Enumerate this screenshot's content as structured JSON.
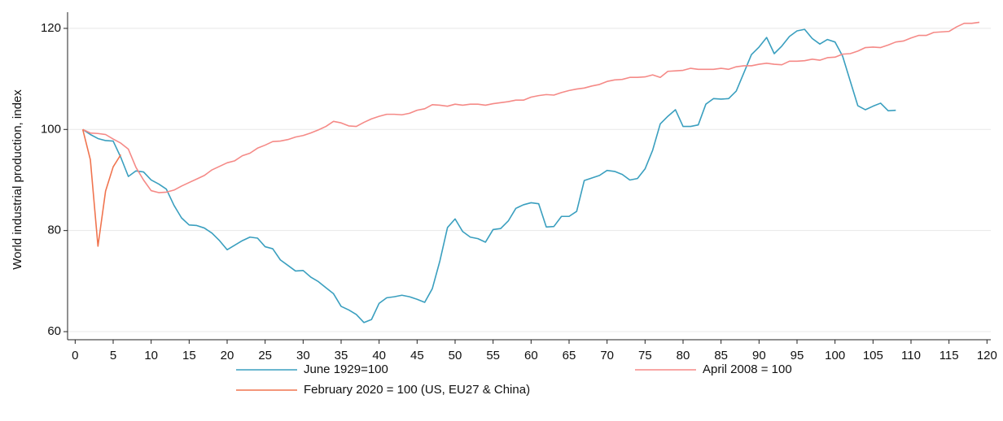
{
  "chart_data": {
    "type": "line",
    "y_label": "World industrial production, index",
    "xlim": [
      -1,
      120.5
    ],
    "ylim": [
      58.4,
      123.2
    ],
    "xticks": [
      0,
      5,
      10,
      15,
      20,
      25,
      30,
      35,
      40,
      45,
      50,
      55,
      60,
      65,
      70,
      75,
      80,
      85,
      90,
      95,
      100,
      105,
      110,
      115,
      120
    ],
    "yticks": [
      60,
      80,
      100,
      120
    ],
    "grid": true,
    "series": [
      {
        "name": "June 1929=100",
        "color": "#3a9fbf",
        "x": [
          1,
          2,
          3,
          4,
          5,
          6,
          7,
          8,
          9,
          10,
          11,
          12,
          13,
          14,
          15,
          16,
          17,
          18,
          19,
          20,
          21,
          22,
          23,
          24,
          25,
          26,
          27,
          28,
          29,
          30,
          31,
          32,
          33,
          34,
          35,
          36,
          37,
          38,
          39,
          40,
          41,
          42,
          43,
          44,
          45,
          46,
          47,
          48,
          49,
          50,
          51,
          52,
          53,
          54,
          55,
          56,
          57,
          58,
          59,
          60,
          61,
          62,
          63,
          64,
          65,
          66,
          67,
          68,
          69,
          70,
          71,
          72,
          73,
          74,
          75,
          76,
          77,
          78,
          79,
          80,
          81,
          82,
          83,
          84,
          85,
          86,
          87,
          88,
          89,
          90,
          91,
          92,
          93,
          94,
          95,
          96,
          97,
          98,
          99,
          100,
          101,
          102,
          103,
          104,
          105,
          106,
          107,
          108
        ],
        "values": [
          100,
          99,
          98.2,
          97.8,
          97.7,
          94.5,
          90.7,
          91.8,
          91.6,
          90,
          89.2,
          88.2,
          85,
          82.5,
          81.1,
          81,
          80.5,
          79.5,
          78,
          76.2,
          77.1,
          78,
          78.7,
          78.5,
          76.8,
          76.4,
          74.2,
          73.1,
          72,
          72.1,
          70.8,
          69.9,
          68.7,
          67.5,
          65,
          64.3,
          63.4,
          61.8,
          62.4,
          65.6,
          66.7,
          66.9,
          67.2,
          66.9,
          66.4,
          65.8,
          68.5,
          74,
          80.6,
          82.3,
          79.8,
          78.7,
          78.4,
          77.7,
          80.2,
          80.4,
          81.9,
          84.4,
          85.1,
          85.5,
          85.3,
          80.7,
          80.8,
          82.8,
          82.8,
          83.8,
          89.9,
          90.4,
          90.9,
          91.9,
          91.7,
          91.1,
          90,
          90.3,
          92.2,
          95.9,
          101.1,
          102.6,
          103.9,
          100.6,
          100.6,
          100.9,
          105,
          106.1,
          106,
          106.1,
          107.6,
          111.2,
          114.8,
          116.3,
          118.2,
          115,
          116.5,
          118.4,
          119.5,
          119.8,
          118,
          116.9,
          117.8,
          117.3,
          114.5,
          109.6,
          104.7,
          103.9,
          104.6,
          105.2,
          103.7,
          103.8
        ]
      },
      {
        "name": "April 2008 = 100",
        "color": "#f58a87",
        "x": [
          1,
          2,
          3,
          4,
          5,
          6,
          7,
          8,
          9,
          10,
          11,
          12,
          13,
          14,
          15,
          16,
          17,
          18,
          19,
          20,
          21,
          22,
          23,
          24,
          25,
          26,
          27,
          28,
          29,
          30,
          31,
          32,
          33,
          34,
          35,
          36,
          37,
          38,
          39,
          40,
          41,
          42,
          43,
          44,
          45,
          46,
          47,
          48,
          49,
          50,
          51,
          52,
          53,
          54,
          55,
          56,
          57,
          58,
          59,
          60,
          61,
          62,
          63,
          64,
          65,
          66,
          67,
          68,
          69,
          70,
          71,
          72,
          73,
          74,
          75,
          76,
          77,
          78,
          79,
          80,
          81,
          82,
          83,
          84,
          85,
          86,
          87,
          88,
          89,
          90,
          91,
          92,
          93,
          94,
          95,
          96,
          97,
          98,
          99,
          100,
          101,
          102,
          103,
          104,
          105,
          106,
          107,
          108,
          109,
          110,
          111,
          112,
          113,
          114,
          115,
          116,
          117,
          118,
          119
        ],
        "values": [
          100,
          99.3,
          99.2,
          99,
          98.1,
          97.3,
          96.1,
          92.5,
          90,
          87.9,
          87.5,
          87.6,
          88,
          88.8,
          89.5,
          90.2,
          90.9,
          92,
          92.7,
          93.4,
          93.8,
          94.8,
          95.3,
          96.3,
          96.9,
          97.6,
          97.7,
          98,
          98.5,
          98.8,
          99.3,
          99.9,
          100.6,
          101.6,
          101.3,
          100.7,
          100.6,
          101.4,
          102.1,
          102.6,
          103,
          103,
          102.9,
          103.2,
          103.8,
          104.1,
          104.9,
          104.8,
          104.6,
          105,
          104.8,
          105,
          105,
          104.8,
          105.1,
          105.3,
          105.5,
          105.8,
          105.8,
          106.4,
          106.7,
          106.9,
          106.8,
          107.3,
          107.7,
          108,
          108.2,
          108.6,
          108.9,
          109.5,
          109.8,
          109.9,
          110.3,
          110.3,
          110.4,
          110.8,
          110.3,
          111.5,
          111.6,
          111.7,
          112.1,
          111.9,
          111.9,
          111.9,
          112.1,
          111.9,
          112.4,
          112.6,
          112.6,
          112.9,
          113.1,
          112.9,
          112.8,
          113.5,
          113.5,
          113.6,
          113.9,
          113.7,
          114.2,
          114.3,
          114.9,
          115,
          115.5,
          116.2,
          116.3,
          116.2,
          116.7,
          117.3,
          117.5,
          118.1,
          118.6,
          118.6,
          119.2,
          119.3,
          119.4,
          120.3,
          121,
          121,
          121.2
        ]
      },
      {
        "name": "February 2020 = 100 (US, EU27 & China)",
        "color": "#f0744f",
        "x": [
          1,
          2,
          3,
          4,
          5,
          6
        ],
        "values": [
          100,
          94,
          76.9,
          87.8,
          92.6,
          95
        ]
      }
    ]
  }
}
